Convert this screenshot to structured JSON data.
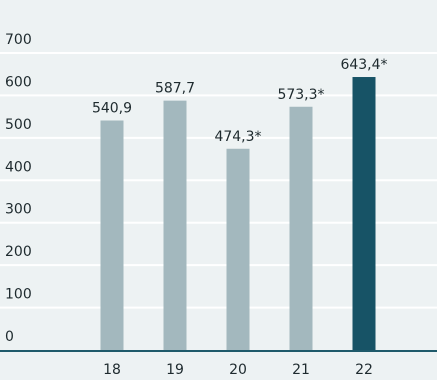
{
  "chart_data": {
    "type": "bar",
    "categories": [
      "18",
      "19",
      "20",
      "21",
      "22"
    ],
    "values": [
      540.9,
      587.7,
      474.3,
      573.3,
      643.4
    ],
    "value_labels": [
      "540,9",
      "587,7",
      "474,3*",
      "573,3*",
      "643,4*"
    ],
    "y_ticks": [
      "0",
      "100",
      "200",
      "300",
      "400",
      "500",
      "600",
      "700"
    ],
    "ylim": [
      0,
      700
    ],
    "highlight_index": 4,
    "colors": {
      "bar": "#a3b8be",
      "highlight": "#175366",
      "grid": "#ffffff",
      "baseline": "#1f5a6b",
      "text": "#1e2a2e",
      "background": "#edf2f3"
    },
    "grid": true,
    "title": "",
    "xlabel": "",
    "ylabel": ""
  }
}
